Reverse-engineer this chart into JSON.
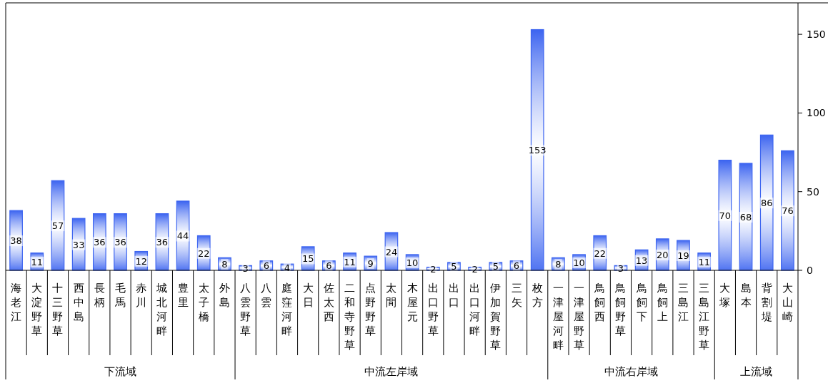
{
  "chart_data": [
    {
      "type": "bar",
      "color": "#3c64f0",
      "data_labels": true,
      "xlabel": "下流域",
      "tick_labels": "x",
      "ylim": [
        0,
        170
      ],
      "categories": [
        "海老江",
        "大淀野草",
        "十三野草",
        "西中島",
        "長柄",
        "毛馬",
        "赤川",
        "城北河畔",
        "豊里",
        "太子橋",
        "外島"
      ],
      "values": [
        38,
        11,
        57,
        33,
        36,
        36,
        12,
        36,
        44,
        22,
        8
      ]
    },
    {
      "type": "bar",
      "color": "#3c64f0",
      "data_labels": true,
      "xlabel": "中流左岸域",
      "tick_labels": "x",
      "ylim": [
        0,
        170
      ],
      "categories": [
        "八雲野草",
        "八雲",
        "庭窪河畔",
        "大日",
        "佐太西",
        "二和寺野草",
        "点野野草",
        "太間",
        "木屋元",
        "出口野草",
        "出口",
        "出口河畔",
        "伊加賀野草",
        "三矢",
        "枚方"
      ],
      "values": [
        3,
        6,
        4,
        15,
        6,
        11,
        9,
        24,
        10,
        2,
        5,
        2,
        5,
        6,
        153
      ]
    },
    {
      "type": "bar",
      "color": "#3c64f0",
      "data_labels": true,
      "xlabel": "中流右岸域",
      "tick_labels": "x",
      "ylim": [
        0,
        170
      ],
      "categories": [
        "一津屋河畔",
        "一津屋野草",
        "鳥飼西",
        "鳥飼野草",
        "鳥飼下",
        "鳥飼上",
        "三島江",
        "三島江野草"
      ],
      "values": [
        8,
        10,
        22,
        3,
        13,
        20,
        19,
        11
      ]
    },
    {
      "type": "bar",
      "color": "#3c64f0",
      "data_labels": true,
      "xlabel": "上流域",
      "ylim": [
        0,
        170
      ],
      "yticks": [
        0,
        50,
        100,
        150
      ],
      "categories": [
        "大塚",
        "島本",
        "背割堤",
        "大山崎"
      ],
      "values": [
        70,
        68,
        86,
        76
      ]
    }
  ]
}
